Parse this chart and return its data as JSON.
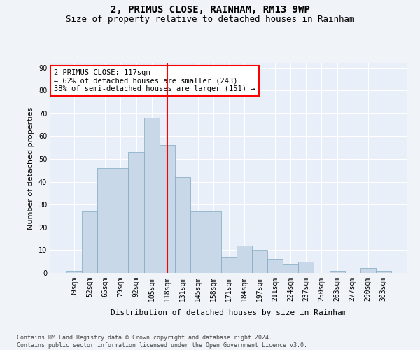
{
  "title": "2, PRIMUS CLOSE, RAINHAM, RM13 9WP",
  "subtitle": "Size of property relative to detached houses in Rainham",
  "xlabel": "Distribution of detached houses by size in Rainham",
  "ylabel": "Number of detached properties",
  "categories": [
    "39sqm",
    "52sqm",
    "65sqm",
    "79sqm",
    "92sqm",
    "105sqm",
    "118sqm",
    "131sqm",
    "145sqm",
    "158sqm",
    "171sqm",
    "184sqm",
    "197sqm",
    "211sqm",
    "224sqm",
    "237sqm",
    "250sqm",
    "263sqm",
    "277sqm",
    "290sqm",
    "303sqm"
  ],
  "values": [
    1,
    27,
    46,
    46,
    53,
    68,
    56,
    42,
    27,
    27,
    7,
    12,
    10,
    6,
    4,
    5,
    0,
    1,
    0,
    2,
    1
  ],
  "bar_color": "#c8d8e8",
  "bar_edge_color": "#7fa8c0",
  "vline_x": 6,
  "vline_color": "red",
  "annotation_text": "2 PRIMUS CLOSE: 117sqm\n← 62% of detached houses are smaller (243)\n38% of semi-detached houses are larger (151) →",
  "annotation_box_color": "white",
  "annotation_box_edge": "red",
  "ylim": [
    0,
    92
  ],
  "yticks": [
    0,
    10,
    20,
    30,
    40,
    50,
    60,
    70,
    80,
    90
  ],
  "footer": "Contains HM Land Registry data © Crown copyright and database right 2024.\nContains public sector information licensed under the Open Government Licence v3.0.",
  "bg_color": "#f0f4f8",
  "plot_bg_color": "#e8eff8",
  "grid_color": "white",
  "title_fontsize": 10,
  "subtitle_fontsize": 9,
  "label_fontsize": 8,
  "tick_fontsize": 7,
  "footer_fontsize": 6
}
